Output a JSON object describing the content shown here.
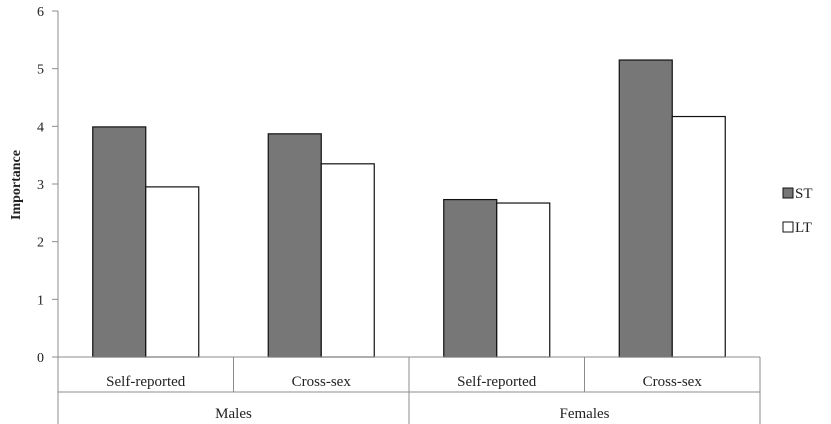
{
  "chart_data": {
    "type": "bar",
    "title": "",
    "xlabel": "",
    "ylabel": "Importance",
    "ylim": [
      0,
      6
    ],
    "yticks": [
      "0",
      "1",
      "2",
      "3",
      "4",
      "5",
      "6"
    ],
    "grid": false,
    "legend_position": "right",
    "groups": [
      {
        "label": "Males",
        "categories": [
          "Self-reported",
          "Cross-sex"
        ]
      },
      {
        "label": "Females",
        "categories": [
          "Self-reported",
          "Cross-sex"
        ]
      }
    ],
    "categories": [
      "Self-reported",
      "Cross-sex",
      "Self-reported",
      "Cross-sex"
    ],
    "series": [
      {
        "name": "ST",
        "color": "#777777",
        "values": [
          3.99,
          3.87,
          2.73,
          5.15
        ]
      },
      {
        "name": "LT",
        "color": "#ffffff",
        "values": [
          2.95,
          3.35,
          2.67,
          4.17
        ]
      }
    ]
  }
}
